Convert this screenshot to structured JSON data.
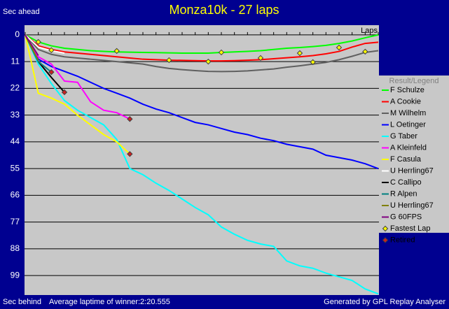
{
  "chart_data": {
    "type": "line",
    "title": "Monza10k - 27 laps",
    "y_label_top": "Sec ahead",
    "y_label_bottom": "Sec behind",
    "x_label": "Laps",
    "legend_title": "Result/Legend",
    "footer_left": "Average laptime of winner:2:20.555",
    "footer_right": "Generated by GPL Replay Analyser",
    "y_inverted": true,
    "grid": true,
    "xlim": [
      0,
      27
    ],
    "ylim": [
      -4,
      107
    ],
    "yticks": [
      0,
      11,
      22,
      33,
      44,
      55,
      66,
      77,
      88,
      99
    ],
    "xticks": [
      0,
      1,
      2,
      3,
      4,
      5,
      6,
      7,
      8,
      9,
      10,
      11,
      12,
      13,
      14,
      15,
      16,
      17,
      18,
      19,
      20,
      21,
      22,
      23,
      24,
      25,
      26,
      27
    ],
    "x": [
      0,
      1,
      2,
      3,
      4,
      5,
      6,
      7,
      8,
      9,
      10,
      11,
      12,
      13,
      14,
      15,
      16,
      17,
      18,
      19,
      20,
      21,
      22,
      23,
      24,
      25,
      26,
      27
    ],
    "series": [
      {
        "name": "F Schulze",
        "color": "#00ff00",
        "values": [
          0,
          2.9,
          4.5,
          5.5,
          6,
          6.5,
          6.8,
          7,
          7.1,
          7.2,
          7.3,
          7.4,
          7.5,
          7.5,
          7.5,
          7.2,
          7,
          6.8,
          6.5,
          6,
          5.5,
          5.2,
          4.8,
          4.3,
          3.5,
          2.5,
          1.2,
          0
        ]
      },
      {
        "name": "A Cookie",
        "color": "#ff0000",
        "values": [
          0,
          4.5,
          6,
          7,
          7.5,
          8,
          8.5,
          9,
          9.5,
          10,
          10.2,
          10.4,
          10.5,
          10.6,
          10.7,
          10.7,
          10.6,
          10.4,
          10.2,
          9.8,
          9.4,
          9,
          8.5,
          7.8,
          6.8,
          5,
          3.5,
          3
        ]
      },
      {
        "name": "M Wilhelm",
        "color": "#606060",
        "values": [
          0,
          6,
          8,
          9,
          9.5,
          10,
          10.5,
          11,
          11.5,
          12,
          13,
          13.8,
          14.3,
          14.7,
          15,
          15.1,
          15,
          14.8,
          14.4,
          14,
          13.3,
          12.7,
          12,
          11.3,
          10.2,
          8.8,
          7.2,
          6.5
        ]
      },
      {
        "name": "L Oetinger",
        "color": "#0000ff",
        "values": [
          0,
          10,
          13,
          15,
          17,
          19.5,
          22,
          24,
          26,
          28.5,
          30.5,
          32,
          34,
          36,
          37,
          38.5,
          40,
          41,
          42.5,
          43.5,
          45,
          46,
          47,
          49.5,
          50.5,
          51.5,
          53,
          55
        ]
      },
      {
        "name": "G Taber",
        "color": "#00ffff",
        "values": [
          0,
          12,
          20,
          27,
          31,
          34,
          37,
          43,
          55,
          57.5,
          61,
          64,
          67.5,
          71,
          74,
          79,
          82,
          84.5,
          86,
          87,
          93,
          95,
          96,
          98,
          99.5,
          101,
          104.5,
          106.5
        ]
      },
      {
        "name": "A Kleinfeld",
        "color": "#ff00ff",
        "values": [
          0,
          9,
          12,
          19,
          19.5,
          27.5,
          31,
          32,
          34.6,
          null,
          null,
          null,
          null,
          null,
          null,
          null,
          null,
          null,
          null,
          null,
          null,
          null,
          null,
          null,
          null,
          null,
          null,
          null
        ]
      },
      {
        "name": "F Casula",
        "color": "#ffff00",
        "values": [
          0,
          24,
          26,
          28.5,
          33,
          37,
          41,
          44,
          49,
          null,
          null,
          null,
          null,
          null,
          null,
          null,
          null,
          null,
          null,
          null,
          null,
          null,
          null,
          null,
          null,
          null,
          null,
          null
        ]
      },
      {
        "name": "U Herrling67",
        "color": "#ffffff",
        "values": [
          0,
          5,
          6.5,
          7.5,
          null,
          null,
          null,
          null,
          null,
          null,
          null,
          null,
          null,
          null,
          null,
          null,
          null,
          null,
          null,
          null,
          null,
          null,
          null,
          null,
          null,
          null,
          null,
          null
        ]
      },
      {
        "name": "C Callipo",
        "color": "#000000",
        "values": [
          0,
          11,
          17.5,
          23.6,
          null,
          null,
          null,
          null,
          null,
          null,
          null,
          null,
          null,
          null,
          null,
          null,
          null,
          null,
          null,
          null,
          null,
          null,
          null,
          null,
          null,
          null,
          null,
          null
        ]
      },
      {
        "name": "R Alpen",
        "color": "#008080",
        "values": [
          0,
          11,
          15.3,
          null,
          null,
          null,
          null,
          null,
          null,
          null,
          null,
          null,
          null,
          null,
          null,
          null,
          null,
          null,
          null,
          null,
          null,
          null,
          null,
          null,
          null,
          null,
          null,
          null
        ]
      },
      {
        "name": "U Herrling67",
        "color": "#808000",
        "values": [
          0,
          10.5,
          null,
          null,
          null,
          null,
          null,
          null,
          null,
          null,
          null,
          null,
          null,
          null,
          null,
          null,
          null,
          null,
          null,
          null,
          null,
          null,
          null,
          null,
          null,
          null,
          null,
          null
        ]
      },
      {
        "name": "G 60FPS",
        "color": "#800080",
        "values": [
          0,
          8.5,
          null,
          null,
          null,
          null,
          null,
          null,
          null,
          null,
          null,
          null,
          null,
          null,
          null,
          null,
          null,
          null,
          null,
          null,
          null,
          null,
          null,
          null,
          null,
          null,
          null,
          null
        ]
      }
    ],
    "markers": [
      {
        "name": "Fastest Lap",
        "color": "#ffff00",
        "x": [
          1,
          2,
          7,
          11,
          14,
          15,
          18,
          21,
          22,
          24,
          26
        ],
        "y": [
          2.9,
          6.3,
          6.6,
          10.4,
          11,
          7.2,
          9.5,
          7.5,
          11.2,
          5.2,
          6.9
        ]
      },
      {
        "name": "Retired",
        "color": "#cc2020",
        "x": [
          2,
          3,
          8,
          8
        ],
        "y": [
          15.3,
          23.6,
          34.6,
          49
        ]
      }
    ]
  }
}
